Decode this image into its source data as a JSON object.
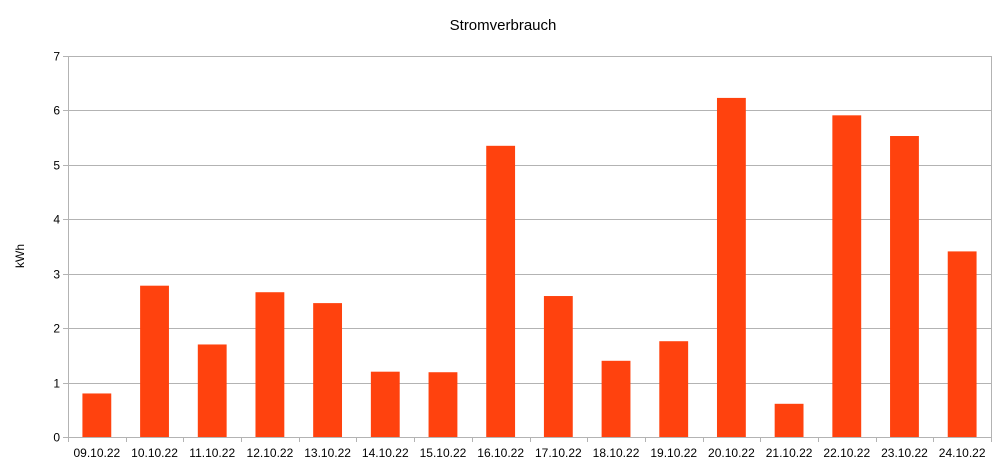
{
  "chart_data": {
    "type": "bar",
    "title": "Stromverbrauch",
    "xlabel": "",
    "ylabel": "kWh",
    "ylim": [
      0,
      7
    ],
    "yticks": [
      "0",
      "1",
      "2",
      "3",
      "4",
      "5",
      "6",
      "7"
    ],
    "grid": true,
    "legend": "none",
    "bar_color": "#ff420e",
    "categories": [
      "09.10.22",
      "10.10.22",
      "11.10.22",
      "12.10.22",
      "13.10.22",
      "14.10.22",
      "15.10.22",
      "16.10.22",
      "17.10.22",
      "18.10.22",
      "19.10.22",
      "20.10.22",
      "21.10.22",
      "22.10.22",
      "23.10.22",
      "24.10.22"
    ],
    "values": [
      0.8,
      2.78,
      1.7,
      2.66,
      2.46,
      1.2,
      1.19,
      5.35,
      2.59,
      1.4,
      1.76,
      6.23,
      0.61,
      5.91,
      5.53,
      3.41
    ]
  }
}
